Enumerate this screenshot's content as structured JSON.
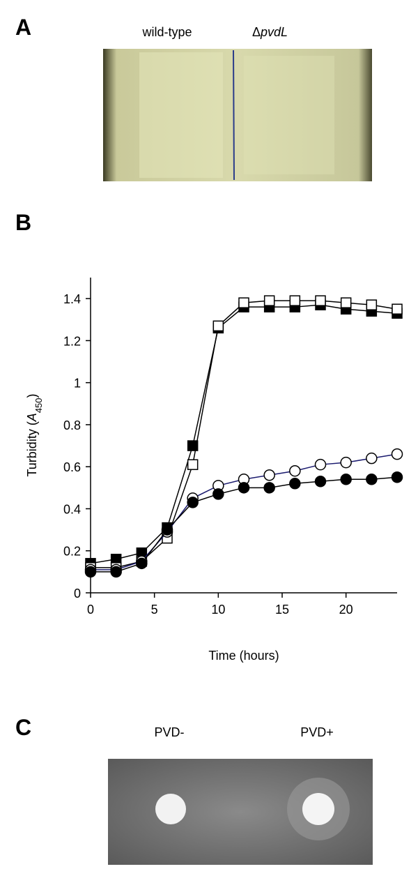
{
  "panel_a": {
    "label": "A",
    "left_label": "wild-type",
    "right_label": [
      "Δ",
      "pvdL"
    ]
  },
  "chart_data": {
    "type": "line",
    "label": "B",
    "xlabel": "Time (hours)",
    "ylabel": [
      "Turbidity (",
      "A",
      "450",
      ")"
    ],
    "x": [
      0,
      2,
      4,
      6,
      8,
      10,
      12,
      14,
      16,
      18,
      20,
      22,
      24
    ],
    "series": [
      {
        "color": "#000000",
        "marker": "square",
        "fill": "#000000",
        "values": [
          0.14,
          0.16,
          0.19,
          0.31,
          0.7,
          1.26,
          1.36,
          1.36,
          1.36,
          1.37,
          1.35,
          1.34,
          1.33
        ]
      },
      {
        "color": "#000000",
        "marker": "square",
        "fill": "#ffffff",
        "values": [
          0.12,
          0.12,
          0.15,
          0.26,
          0.61,
          1.27,
          1.38,
          1.39,
          1.39,
          1.39,
          1.38,
          1.37,
          1.35
        ]
      },
      {
        "color": "#1a1a6e",
        "marker": "circle",
        "fill": "#ffffff",
        "values": [
          0.11,
          0.11,
          0.15,
          0.29,
          0.45,
          0.51,
          0.54,
          0.56,
          0.58,
          0.61,
          0.62,
          0.64,
          0.66
        ]
      },
      {
        "color": "#000000",
        "marker": "circle",
        "fill": "#000000",
        "values": [
          0.1,
          0.1,
          0.14,
          0.3,
          0.43,
          0.47,
          0.5,
          0.5,
          0.52,
          0.53,
          0.54,
          0.54,
          0.55
        ]
      }
    ],
    "xlim": [
      0,
      24
    ],
    "xticks": [
      0,
      5,
      10,
      15,
      20
    ],
    "ylim": [
      0,
      1.5
    ],
    "yticks": [
      0,
      0.2,
      0.4,
      0.6,
      0.8,
      1,
      1.2,
      1.4
    ]
  },
  "panel_c": {
    "label": "C",
    "left_label": "PVD-",
    "right_label": "PVD+"
  }
}
